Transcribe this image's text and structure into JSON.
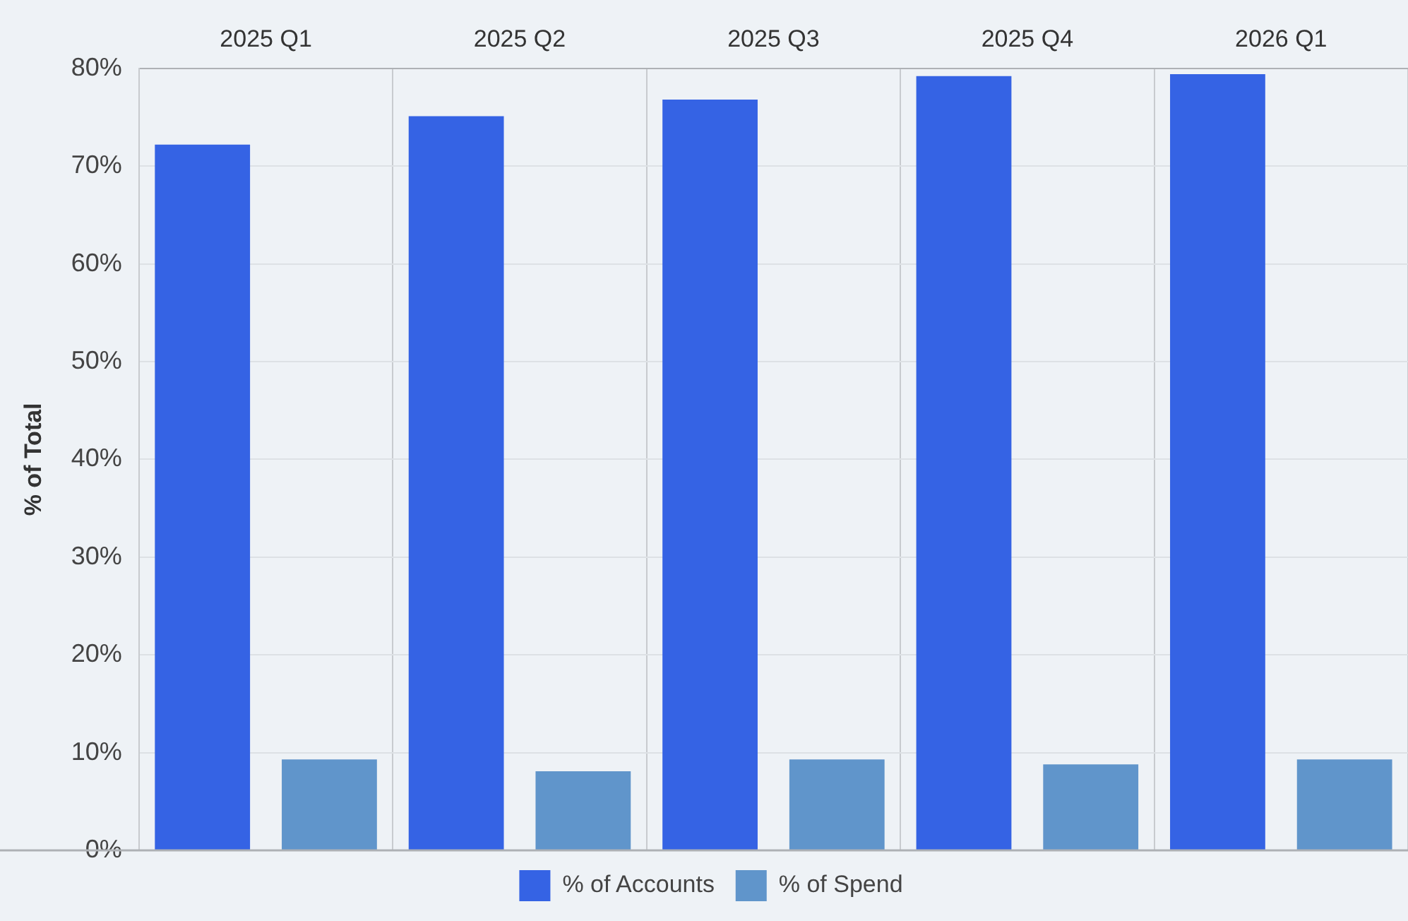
{
  "chart_data": {
    "type": "bar",
    "ylabel": "% of Total",
    "categories": [
      "2025 Q1",
      "2025 Q2",
      "2025 Q3",
      "2025 Q4",
      "2026 Q1"
    ],
    "series": [
      {
        "name": "% of Accounts",
        "color": "#3563e4",
        "values": [
          72.2,
          75.1,
          76.8,
          79.2,
          79.4
        ]
      },
      {
        "name": "% of Spend",
        "color": "#6095cb",
        "values": [
          9.3,
          8.1,
          9.3,
          8.8,
          9.3
        ]
      }
    ],
    "ylim": [
      0,
      80
    ],
    "yticks": [
      {
        "value": 0,
        "label": "0%"
      },
      {
        "value": 10,
        "label": "10%"
      },
      {
        "value": 20,
        "label": "20%"
      },
      {
        "value": 30,
        "label": "30%"
      },
      {
        "value": 40,
        "label": "40%"
      },
      {
        "value": 50,
        "label": "50%"
      },
      {
        "value": 60,
        "label": "60%"
      },
      {
        "value": 70,
        "label": "70%"
      },
      {
        "value": 80,
        "label": "80%"
      }
    ],
    "grid": true,
    "legend": "bottom"
  }
}
